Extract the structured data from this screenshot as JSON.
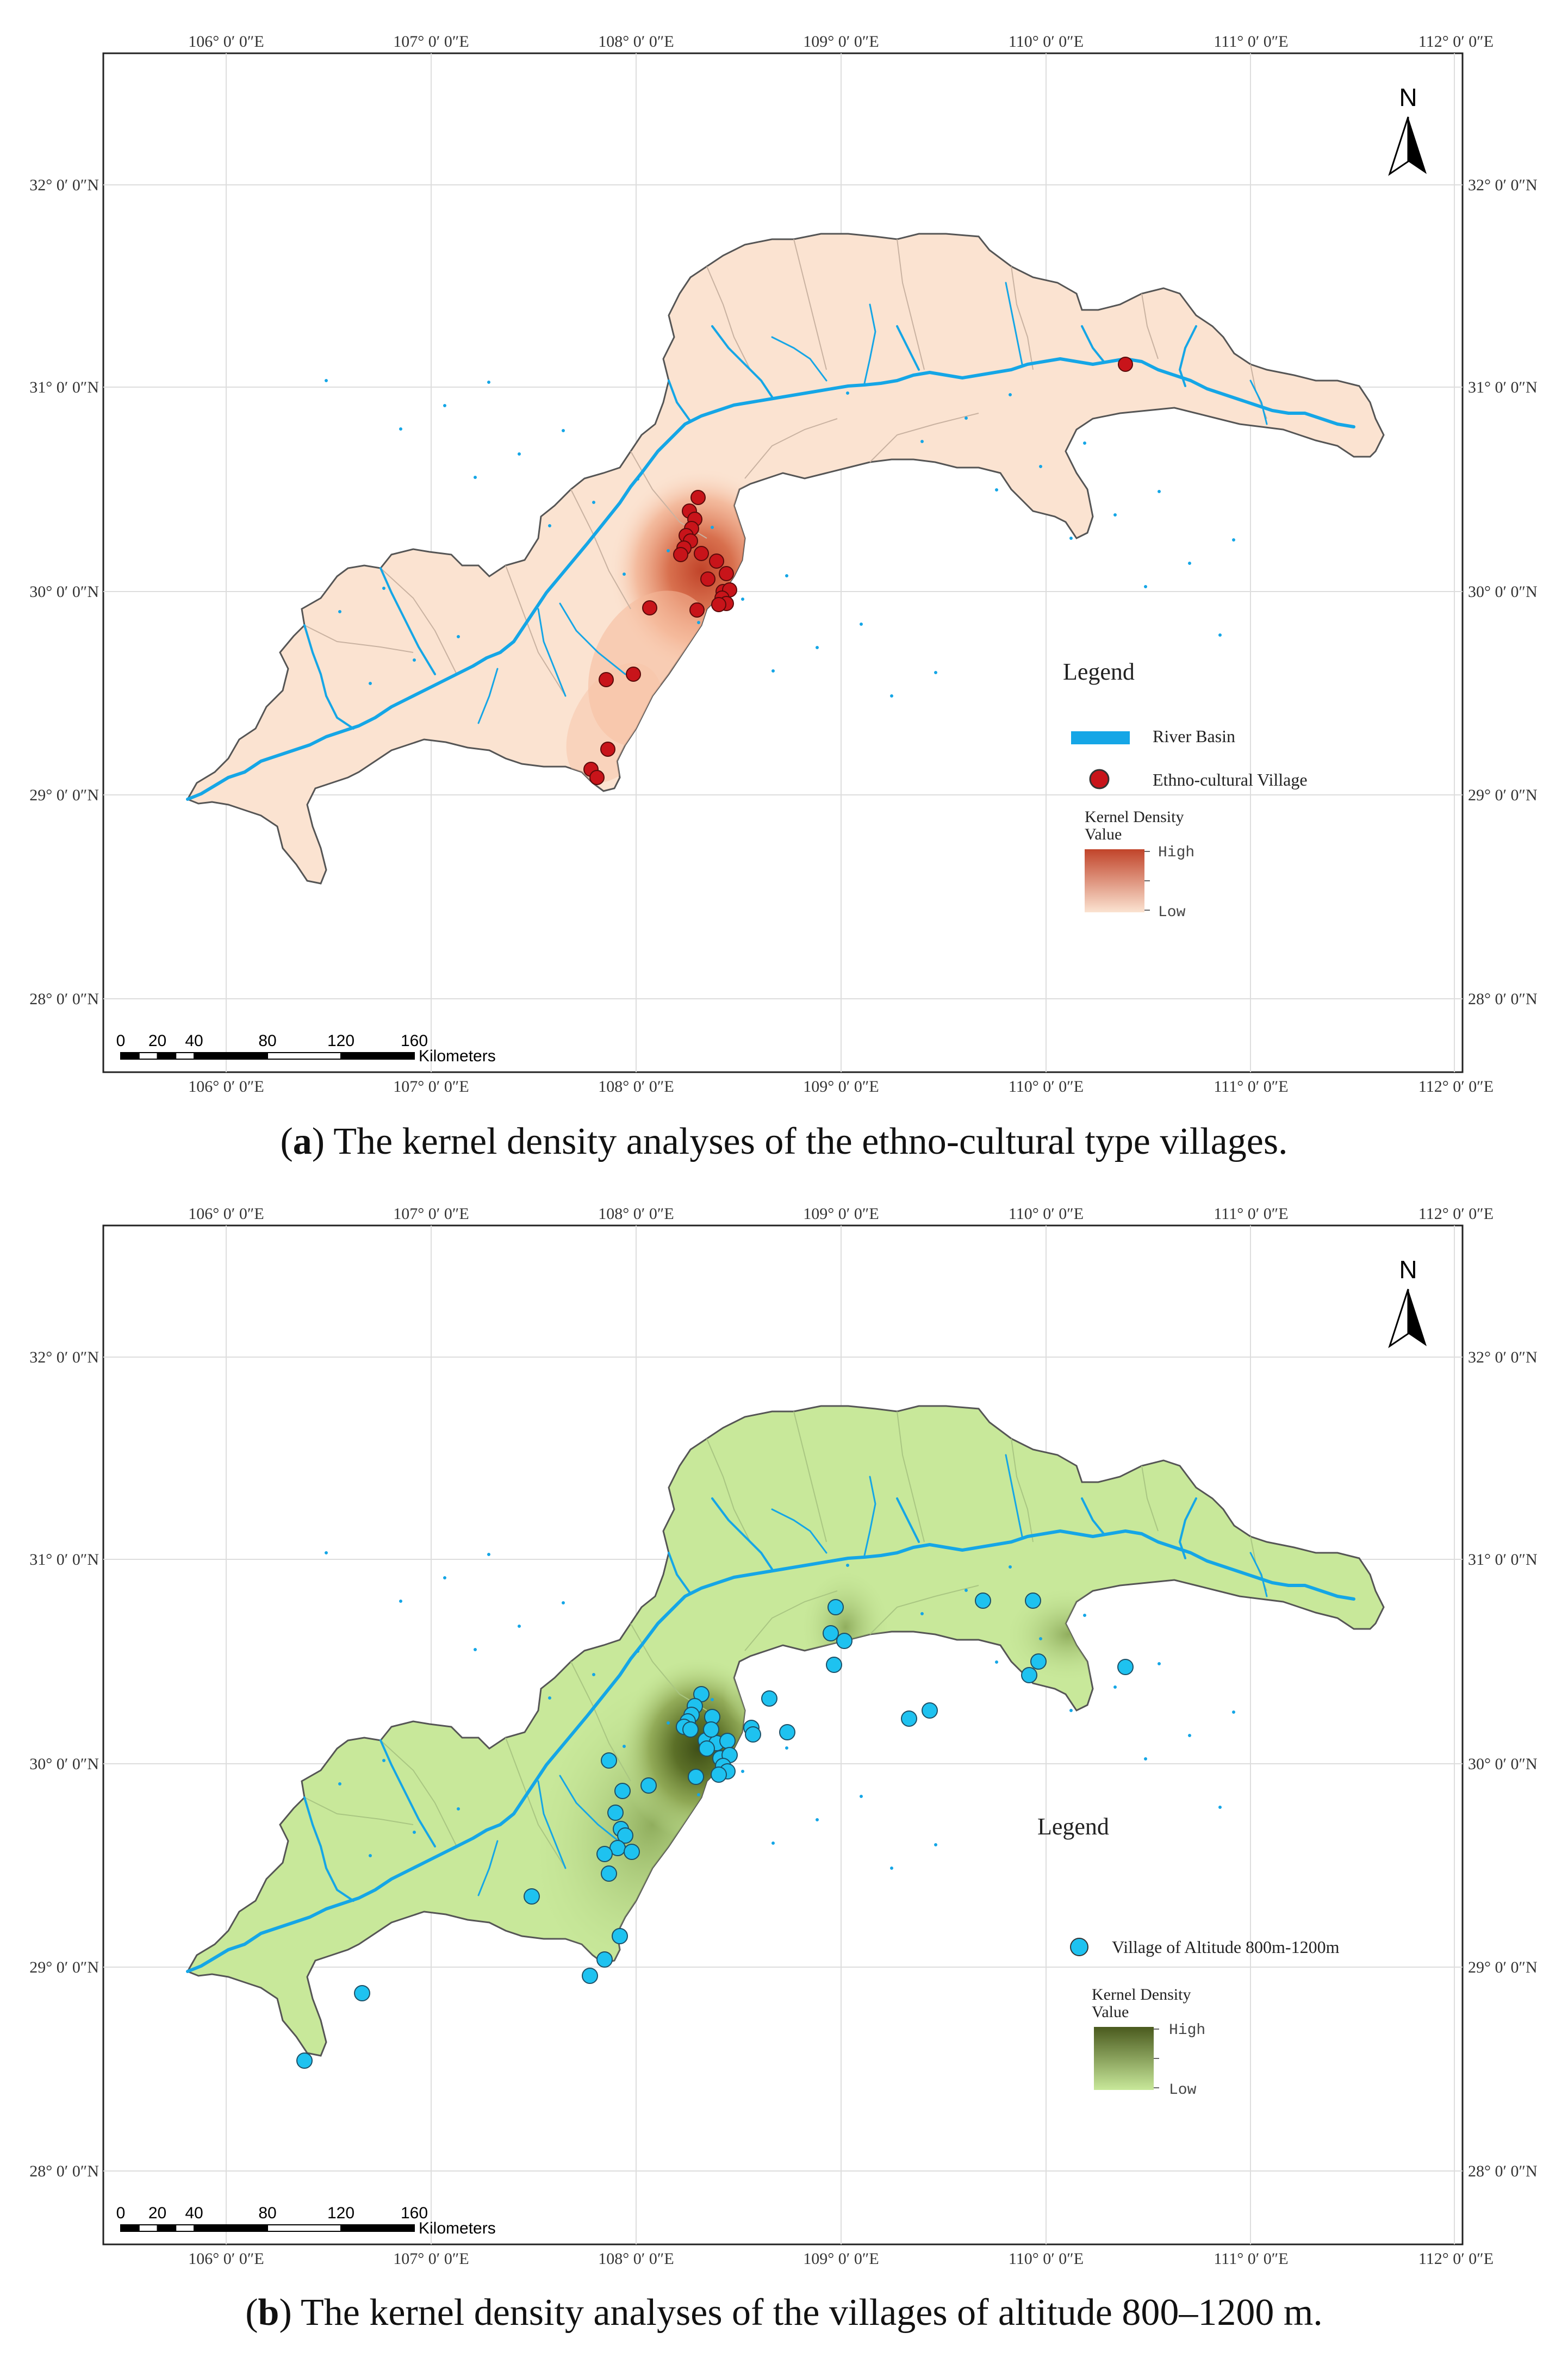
{
  "panels": [
    {
      "id": "a",
      "caption_letter": "a",
      "caption_text": " The kernel density analyses of the ethno-cultural type villages.",
      "legend": {
        "title": "Legend",
        "river_label": "River Basin",
        "village_label": "Ethno-cultural Village",
        "density_title_1": "Kernel Density",
        "density_title_2": "Value",
        "high": "High",
        "low": "Low"
      },
      "colors": {
        "region": "#fbe3d1",
        "density_high": "#c1442a",
        "density_low": "#fbe3d1",
        "point": "#c8141a",
        "river": "#15a6e6"
      }
    },
    {
      "id": "b",
      "caption_letter": "b",
      "caption_text": " The kernel density analyses of the villages of altitude 800–1200 m.",
      "legend": {
        "title": "Legend",
        "village_label": "Village of Altitude 800m-1200m",
        "density_title_1": "Kernel Density",
        "density_title_2": "Value",
        "high": "High",
        "low": "Low"
      },
      "colors": {
        "region": "#c8e89a",
        "density_high": "#4a5a1e",
        "density_low": "#c8e89a",
        "point": "#1ec2f0",
        "river": "#15a6e6"
      }
    }
  ],
  "axes": {
    "lon_labels": [
      "106° 0′ 0″E",
      "107° 0′ 0″E",
      "108° 0′ 0″E",
      "109° 0′ 0″E",
      "110° 0′ 0″E",
      "111° 0′ 0″E",
      "112° 0′ 0″E"
    ],
    "lat_labels": [
      "32° 0′ 0″N",
      "31° 0′ 0″N",
      "30° 0′ 0″N",
      "29° 0′ 0″N",
      "28° 0′ 0″N"
    ]
  },
  "north_arrow": {
    "label": "N",
    "icon": "north-arrow-icon"
  },
  "scale_bar": {
    "ticks": [
      "0",
      "20",
      "40",
      "80",
      "120",
      "160"
    ],
    "unit": "Kilometers"
  }
}
